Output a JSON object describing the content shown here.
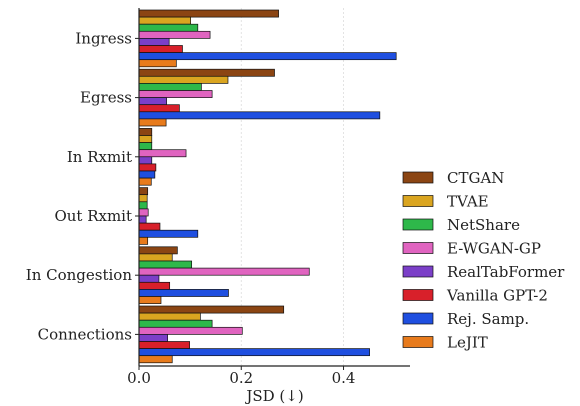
{
  "chart_data": {
    "type": "bar",
    "orientation": "horizontal",
    "categories": [
      "Ingress",
      "Egress",
      "In Rxmit",
      "Out Rxmit",
      "In Congestion",
      "Connections"
    ],
    "series": [
      {
        "name": "CTGAN",
        "color": "#8B4513",
        "values": [
          0.273,
          0.265,
          0.025,
          0.017,
          0.075,
          0.283
        ]
      },
      {
        "name": "TVAE",
        "color": "#DAA520",
        "values": [
          0.101,
          0.174,
          0.025,
          0.016,
          0.065,
          0.12
        ]
      },
      {
        "name": "NetShare",
        "color": "#2EB84A",
        "values": [
          0.115,
          0.122,
          0.025,
          0.016,
          0.103,
          0.143
        ]
      },
      {
        "name": "E-WGAN-GP",
        "color": "#E064C0",
        "values": [
          0.139,
          0.143,
          0.092,
          0.018,
          0.333,
          0.202
        ]
      },
      {
        "name": "RealTabFormer",
        "color": "#7B3FC8",
        "values": [
          0.059,
          0.054,
          0.025,
          0.014,
          0.039,
          0.056
        ]
      },
      {
        "name": "Vanilla GPT-2",
        "color": "#D8202A",
        "values": [
          0.085,
          0.079,
          0.033,
          0.041,
          0.06,
          0.099
        ]
      },
      {
        "name": "Rej. Samp.",
        "color": "#1F4FE0",
        "values": [
          0.503,
          0.471,
          0.031,
          0.115,
          0.175,
          0.451
        ]
      },
      {
        "name": "LeJIT",
        "color": "#E87B1C",
        "values": [
          0.073,
          0.053,
          0.024,
          0.017,
          0.043,
          0.065
        ]
      }
    ],
    "xlabel": "JSD (↓)",
    "ylabel": "",
    "xlim": [
      0,
      0.53
    ],
    "xticks": [
      0.0,
      0.2,
      0.4
    ],
    "xtick_labels": [
      "0.0",
      "0.2",
      "0.4"
    ],
    "grid": "vertical",
    "legend_position": "right"
  }
}
